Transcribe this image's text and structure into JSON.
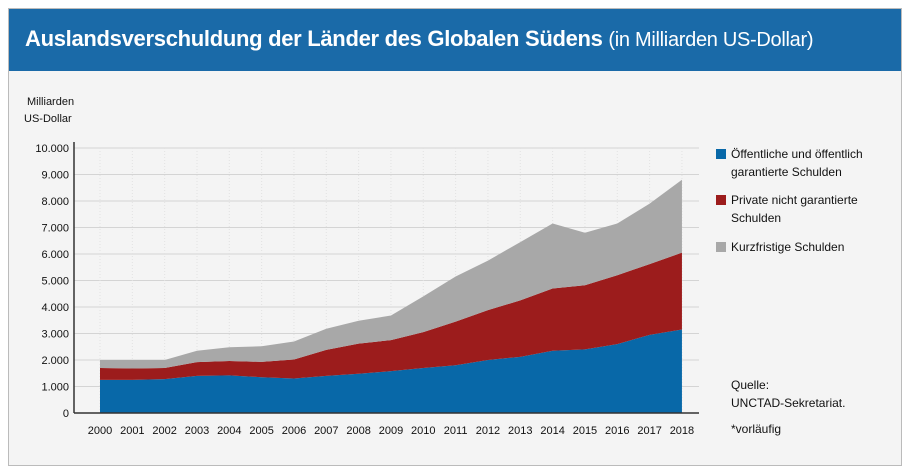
{
  "chart_data": {
    "type": "area",
    "stacked": true,
    "title": "Auslandsverschuldung der Länder des Globalen Südens",
    "subtitle": "(in Milliarden US-Dollar)",
    "ylabel": [
      "Milliarden",
      "US-Dollar"
    ],
    "ylim": [
      0,
      10000
    ],
    "yticks": [
      "0",
      "1.000",
      "2.000",
      "3.000",
      "4.000",
      "5.000",
      "6.000",
      "7.000",
      "8.000",
      "9.000",
      "10.000"
    ],
    "categories": [
      "2000",
      "2001",
      "2002",
      "2003",
      "2004",
      "2005",
      "2006",
      "2007",
      "2008",
      "2009",
      "2010",
      "2011",
      "2012",
      "2013",
      "2014",
      "2015",
      "2016",
      "2017",
      "2018"
    ],
    "footnote_mark": "*",
    "series": [
      {
        "name": "Öffentliche und öffentlich garantierte Schulden",
        "color": "#0868a8",
        "values": [
          1250,
          1250,
          1280,
          1400,
          1420,
          1350,
          1300,
          1400,
          1480,
          1580,
          1700,
          1800,
          2000,
          2120,
          2350,
          2400,
          2600,
          2950,
          3150
        ]
      },
      {
        "name": "Private nicht garantierte Schulden",
        "color": "#9c1c1c",
        "values": [
          450,
          430,
          420,
          520,
          540,
          580,
          720,
          980,
          1140,
          1170,
          1350,
          1650,
          1880,
          2130,
          2350,
          2420,
          2600,
          2670,
          2900
        ]
      },
      {
        "name": "Kurzfristige Schulden",
        "color": "#a8a8a8",
        "values": [
          300,
          320,
          300,
          430,
          520,
          590,
          680,
          800,
          860,
          930,
          1350,
          1700,
          1870,
          2200,
          2450,
          1980,
          1950,
          2280,
          2750
        ]
      }
    ],
    "legend_position": "right"
  },
  "legend": [
    {
      "line1": "Öffentliche und öffentlich",
      "line2": "garantierte Schulden"
    },
    {
      "line1": "Private nicht garantierte",
      "line2": "Schulden"
    },
    {
      "line1": "Kurzfristige Schulden",
      "line2": ""
    }
  ],
  "source": {
    "label": "Quelle:",
    "value": "UNCTAD-Sekretariat."
  },
  "footnote": "*vorläufig"
}
